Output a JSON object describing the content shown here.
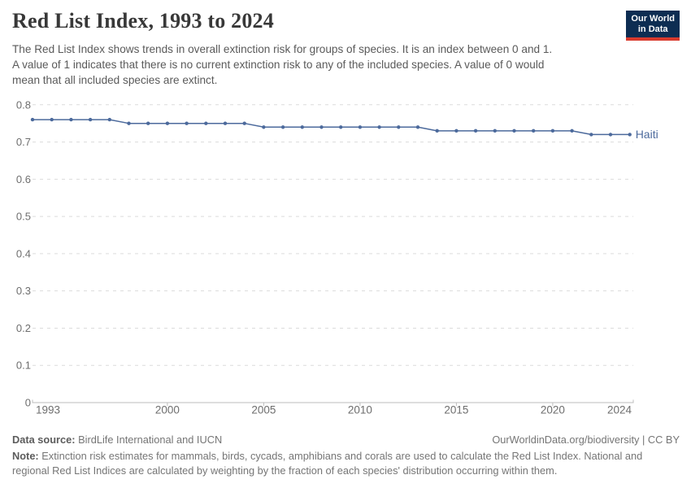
{
  "header": {
    "title": "Red List Index, 1993 to 2024",
    "subtitle_lines": [
      "The Red List Index shows trends in overall extinction risk for groups of species. It is an index between 0 and 1.",
      "A value of 1 indicates that there is no current extinction risk to any of the included species. A value of 0 would",
      "mean that all included species are extinct."
    ],
    "logo": {
      "line1": "Our World",
      "line2": "in Data"
    }
  },
  "chart_data": {
    "type": "line",
    "title": "Red List Index, 1993 to 2024",
    "xlabel": "",
    "ylabel": "",
    "ylim": [
      0,
      0.8
    ],
    "yticks": [
      0,
      0.1,
      0.2,
      0.3,
      0.4,
      0.5,
      0.6,
      0.7,
      0.8
    ],
    "xticks": [
      1993,
      2000,
      2005,
      2010,
      2015,
      2020,
      2024
    ],
    "grid": "horizontal-dashed",
    "legend": "inline-end-label",
    "x": [
      1993,
      1994,
      1995,
      1996,
      1997,
      1998,
      1999,
      2000,
      2001,
      2002,
      2003,
      2004,
      2005,
      2006,
      2007,
      2008,
      2009,
      2010,
      2011,
      2012,
      2013,
      2014,
      2015,
      2016,
      2017,
      2018,
      2019,
      2020,
      2021,
      2022,
      2023,
      2024
    ],
    "series": [
      {
        "name": "Haiti",
        "color": "#4C6A9C",
        "values": [
          0.76,
          0.76,
          0.76,
          0.76,
          0.76,
          0.75,
          0.75,
          0.75,
          0.75,
          0.75,
          0.75,
          0.75,
          0.74,
          0.74,
          0.74,
          0.74,
          0.74,
          0.74,
          0.74,
          0.74,
          0.74,
          0.73,
          0.73,
          0.73,
          0.73,
          0.73,
          0.73,
          0.73,
          0.73,
          0.72,
          0.72,
          0.72
        ]
      }
    ]
  },
  "footer": {
    "data_source_label": "Data source:",
    "data_source": "BirdLife International and IUCN",
    "link": "OurWorldinData.org/biodiversity | CC BY",
    "note_label": "Note:",
    "note_lines": [
      "Extinction risk estimates for mammals, birds, cycads, amphibians and corals are used to calculate the Red List Index. National and",
      "regional Red List Indices are calculated by weighting by the fraction of each species' distribution occurring within them."
    ]
  },
  "colors": {
    "line": "#4C6A9C",
    "logo_navy": "#0d2d52",
    "logo_red": "#d93a2d",
    "title_text": "#383838",
    "subtitle_text": "#5a5a5a",
    "tick_label": "#6e6e6e",
    "gridline": "#dcdcdc",
    "axis": "#bdbdbd",
    "footer_text": "#757575"
  }
}
